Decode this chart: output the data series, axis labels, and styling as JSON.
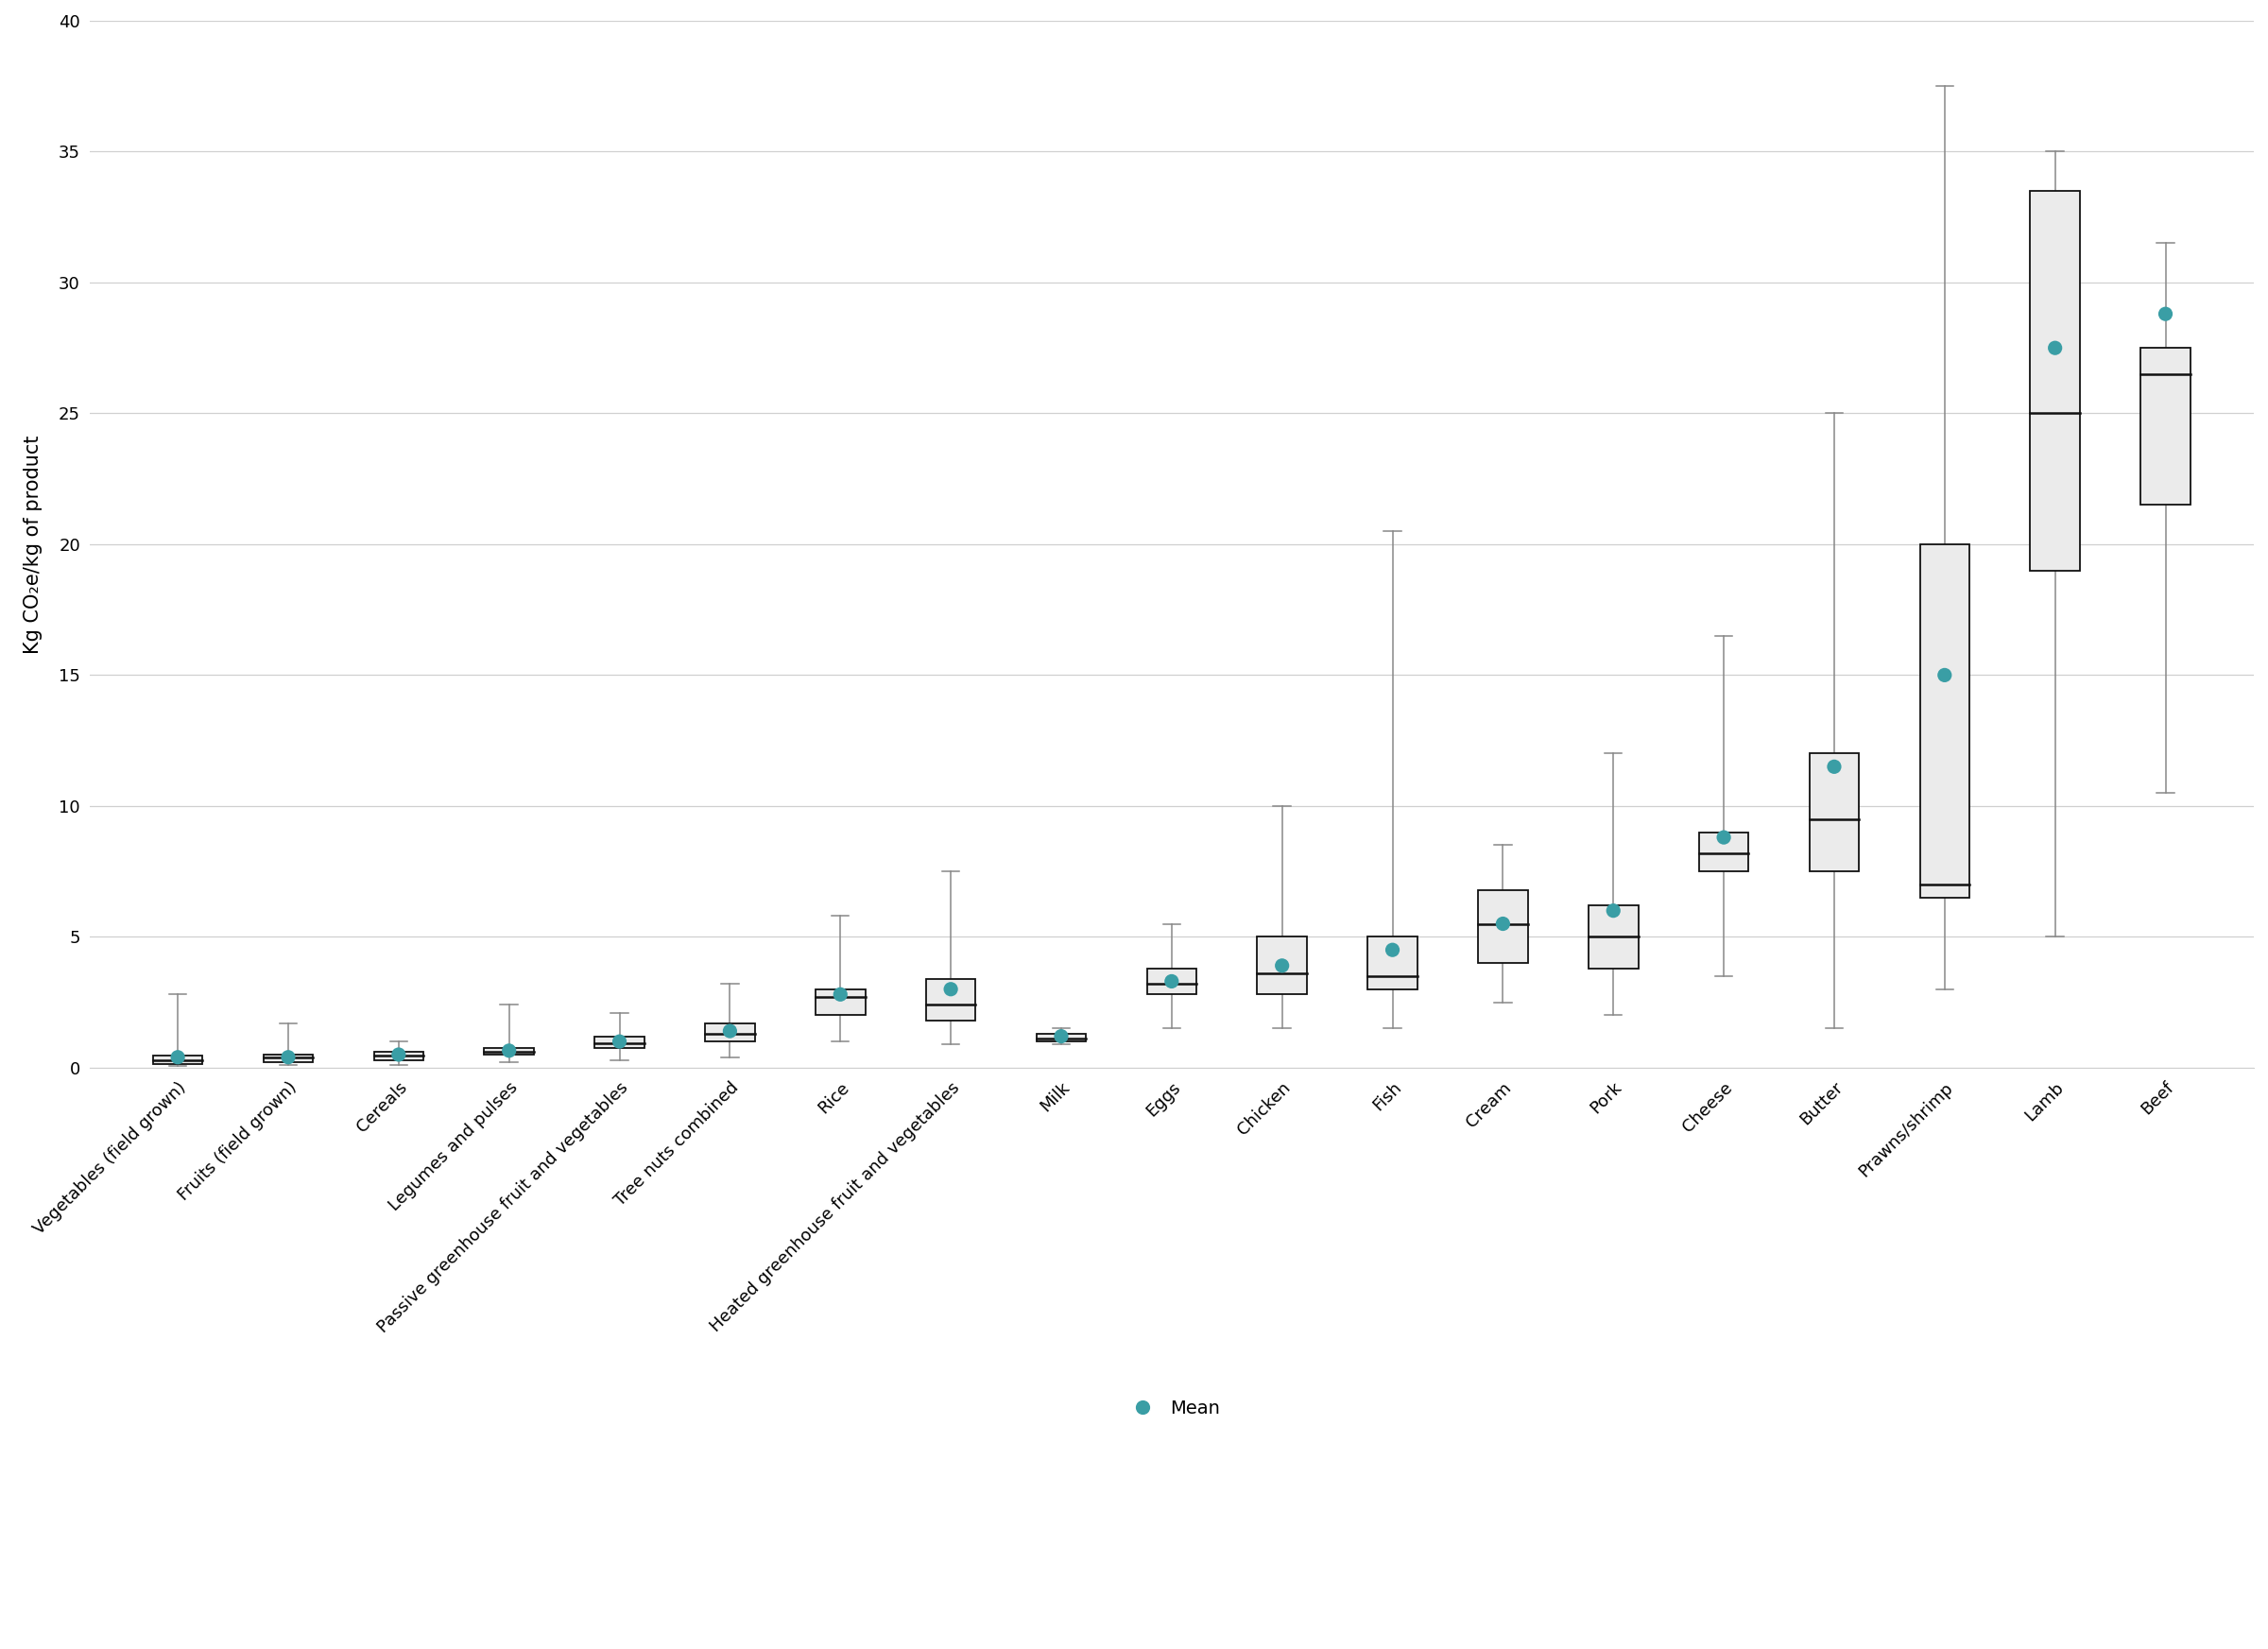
{
  "categories": [
    "Vegetables (field grown)",
    "Fruits (field grown)",
    "Cereals",
    "Legumes and pulses",
    "Passive greenhouse fruit and vegetables",
    "Tree nuts combined",
    "Rice",
    "Heated greenhouse fruit and vegetables",
    "Milk",
    "Eggs",
    "Chicken",
    "Fish",
    "Cream",
    "Pork",
    "Cheese",
    "Butter",
    "Prawns/shrimp",
    "Lamb",
    "Beef"
  ],
  "box_data": [
    {
      "whislo": 0.05,
      "q1": 0.15,
      "med": 0.3,
      "q3": 0.45,
      "whishi": 2.8,
      "mean": 0.4
    },
    {
      "whislo": 0.1,
      "q1": 0.2,
      "med": 0.4,
      "q3": 0.5,
      "whishi": 1.7,
      "mean": 0.4
    },
    {
      "whislo": 0.1,
      "q1": 0.3,
      "med": 0.45,
      "q3": 0.6,
      "whishi": 1.0,
      "mean": 0.5
    },
    {
      "whislo": 0.2,
      "q1": 0.5,
      "med": 0.6,
      "q3": 0.75,
      "whishi": 2.4,
      "mean": 0.65
    },
    {
      "whislo": 0.3,
      "q1": 0.75,
      "med": 0.95,
      "q3": 1.2,
      "whishi": 2.1,
      "mean": 1.0
    },
    {
      "whislo": 0.4,
      "q1": 1.0,
      "med": 1.3,
      "q3": 1.7,
      "whishi": 3.2,
      "mean": 1.4
    },
    {
      "whislo": 1.0,
      "q1": 2.0,
      "med": 2.7,
      "q3": 3.0,
      "whishi": 5.8,
      "mean": 2.8
    },
    {
      "whislo": 0.9,
      "q1": 1.8,
      "med": 2.4,
      "q3": 3.4,
      "whishi": 7.5,
      "mean": 3.0
    },
    {
      "whislo": 0.9,
      "q1": 1.0,
      "med": 1.1,
      "q3": 1.3,
      "whishi": 1.5,
      "mean": 1.2
    },
    {
      "whislo": 1.5,
      "q1": 2.8,
      "med": 3.2,
      "q3": 3.8,
      "whishi": 5.5,
      "mean": 3.3
    },
    {
      "whislo": 1.5,
      "q1": 2.8,
      "med": 3.6,
      "q3": 5.0,
      "whishi": 10.0,
      "mean": 3.9
    },
    {
      "whislo": 1.5,
      "q1": 3.0,
      "med": 3.5,
      "q3": 5.0,
      "whishi": 20.5,
      "mean": 4.5
    },
    {
      "whislo": 2.5,
      "q1": 4.0,
      "med": 5.5,
      "q3": 6.8,
      "whishi": 8.5,
      "mean": 5.5
    },
    {
      "whislo": 2.0,
      "q1": 3.8,
      "med": 5.0,
      "q3": 6.2,
      "whishi": 12.0,
      "mean": 6.0
    },
    {
      "whislo": 3.5,
      "q1": 7.5,
      "med": 8.2,
      "q3": 9.0,
      "whishi": 16.5,
      "mean": 8.8
    },
    {
      "whislo": 1.5,
      "q1": 7.5,
      "med": 9.5,
      "q3": 12.0,
      "whishi": 25.0,
      "mean": 11.5
    },
    {
      "whislo": 3.0,
      "q1": 6.5,
      "med": 7.0,
      "q3": 20.0,
      "whishi": 37.5,
      "mean": 15.0
    },
    {
      "whislo": 5.0,
      "q1": 19.0,
      "med": 25.0,
      "q3": 33.5,
      "whishi": 35.0,
      "mean": 27.5
    },
    {
      "whislo": 10.5,
      "q1": 21.5,
      "med": 26.5,
      "q3": 27.5,
      "whishi": 31.5,
      "mean": 28.8
    }
  ],
  "ylabel": "Kg CO₂e/kg of product",
  "ylim": [
    0,
    40
  ],
  "yticks": [
    0,
    5,
    10,
    15,
    20,
    25,
    30,
    35,
    40
  ],
  "mean_color": "#3a9ea5",
  "box_facecolor": "#ebebeb",
  "box_edgecolor": "#111111",
  "whisker_color": "#888888",
  "median_color": "#111111",
  "background_color": "#ffffff",
  "grid_color": "#d0d0d0",
  "legend_label": "Mean",
  "ylabel_fontsize": 15,
  "tick_fontsize": 13,
  "legend_fontsize": 14,
  "box_width": 0.45,
  "mean_size": 120,
  "rotation": 45
}
